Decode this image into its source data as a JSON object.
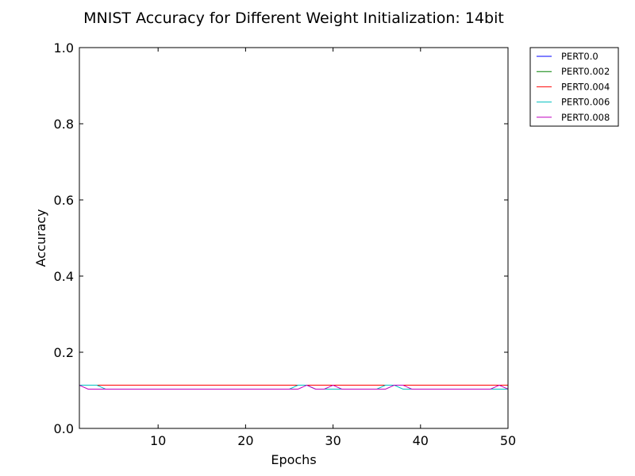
{
  "chart_data": {
    "type": "line",
    "title": "MNIST Accuracy for Different Weight Initialization: 14bit",
    "xlabel": "Epochs",
    "ylabel": "Accuracy",
    "xlim": [
      1,
      50
    ],
    "ylim": [
      0.0,
      1.0
    ],
    "x_ticks": [
      10,
      20,
      30,
      40,
      50
    ],
    "x_tick_labels": [
      "10",
      "20",
      "30",
      "40",
      "50"
    ],
    "y_ticks": [
      0.0,
      0.2,
      0.4,
      0.6,
      0.8,
      1.0
    ],
    "y_tick_labels": [
      "0.0",
      "0.2",
      "0.4",
      "0.6",
      "0.8",
      "1.0"
    ],
    "grid": false,
    "legend_position": "outside-top-right",
    "x": [
      1,
      2,
      3,
      4,
      5,
      6,
      7,
      8,
      9,
      10,
      11,
      12,
      13,
      14,
      15,
      16,
      17,
      18,
      19,
      20,
      21,
      22,
      23,
      24,
      25,
      26,
      27,
      28,
      29,
      30,
      31,
      32,
      33,
      34,
      35,
      36,
      37,
      38,
      39,
      40,
      41,
      42,
      43,
      44,
      45,
      46,
      47,
      48,
      49,
      50
    ],
    "series": [
      {
        "name": "PERT0.0",
        "color": "#0000ff",
        "values": [
          0.1135,
          0.1135,
          0.1135,
          0.1135,
          0.1135,
          0.1135,
          0.1135,
          0.1135,
          0.1135,
          0.1135,
          0.1135,
          0.1135,
          0.1135,
          0.1135,
          0.1135,
          0.1135,
          0.1135,
          0.1135,
          0.1135,
          0.1135,
          0.1135,
          0.1135,
          0.1135,
          0.1135,
          0.1135,
          0.1135,
          0.1135,
          0.1135,
          0.1135,
          0.1135,
          0.1135,
          0.1135,
          0.1135,
          0.1135,
          0.1135,
          0.1135,
          0.1135,
          0.1135,
          0.1135,
          0.1135,
          0.1135,
          0.1135,
          0.1135,
          0.1135,
          0.1135,
          0.1135,
          0.1135,
          0.1135,
          0.1135,
          0.1135
        ]
      },
      {
        "name": "PERT0.002",
        "color": "#008000",
        "values": [
          0.1135,
          0.1135,
          0.1135,
          0.1135,
          0.1135,
          0.1135,
          0.1135,
          0.1135,
          0.1135,
          0.1135,
          0.1135,
          0.1135,
          0.1135,
          0.1135,
          0.1135,
          0.1135,
          0.1135,
          0.1135,
          0.1135,
          0.1135,
          0.1135,
          0.1135,
          0.1135,
          0.1135,
          0.1135,
          0.1135,
          0.1135,
          0.1135,
          0.1135,
          0.1135,
          0.1135,
          0.1135,
          0.1135,
          0.1135,
          0.1135,
          0.1135,
          0.1135,
          0.1135,
          0.1135,
          0.1135,
          0.1135,
          0.1135,
          0.1135,
          0.1135,
          0.1135,
          0.1135,
          0.1135,
          0.1135,
          0.1135,
          0.1135
        ]
      },
      {
        "name": "PERT0.004",
        "color": "#ff0000",
        "values": [
          0.1135,
          0.1135,
          0.1135,
          0.1135,
          0.1135,
          0.1135,
          0.1135,
          0.1135,
          0.1135,
          0.1135,
          0.1135,
          0.1135,
          0.1135,
          0.1135,
          0.1135,
          0.1135,
          0.1135,
          0.1135,
          0.1135,
          0.1135,
          0.1135,
          0.1135,
          0.1135,
          0.1135,
          0.1135,
          0.1135,
          0.1135,
          0.1135,
          0.1135,
          0.1135,
          0.1135,
          0.1135,
          0.1135,
          0.1135,
          0.1135,
          0.1135,
          0.1135,
          0.1135,
          0.1135,
          0.1135,
          0.1135,
          0.1135,
          0.1135,
          0.1135,
          0.1135,
          0.1135,
          0.1135,
          0.1135,
          0.1135,
          0.1135
        ]
      },
      {
        "name": "PERT0.006",
        "color": "#00bfbf",
        "values": [
          0.1135,
          0.1135,
          0.1135,
          0.1032,
          0.1032,
          0.1032,
          0.1032,
          0.1032,
          0.1032,
          0.1032,
          0.1032,
          0.1032,
          0.1032,
          0.1032,
          0.1032,
          0.1032,
          0.1032,
          0.1032,
          0.1032,
          0.1032,
          0.1032,
          0.1032,
          0.1032,
          0.1032,
          0.1032,
          0.1135,
          0.1135,
          0.1032,
          0.1032,
          0.1032,
          0.1032,
          0.1032,
          0.1032,
          0.1032,
          0.1032,
          0.1135,
          0.1135,
          0.1032,
          0.1032,
          0.1032,
          0.1032,
          0.1032,
          0.1032,
          0.1032,
          0.1032,
          0.1032,
          0.1032,
          0.1032,
          0.1032,
          0.1032
        ]
      },
      {
        "name": "PERT0.008",
        "color": "#bf00bf",
        "values": [
          0.1135,
          0.1032,
          0.1032,
          0.1032,
          0.1032,
          0.1032,
          0.1032,
          0.1032,
          0.1032,
          0.1032,
          0.1032,
          0.1032,
          0.1032,
          0.1032,
          0.1032,
          0.1032,
          0.1032,
          0.1032,
          0.1032,
          0.1032,
          0.1032,
          0.1032,
          0.1032,
          0.1032,
          0.1032,
          0.1032,
          0.1135,
          0.1032,
          0.1032,
          0.1135,
          0.1032,
          0.1032,
          0.1032,
          0.1032,
          0.1032,
          0.1032,
          0.1135,
          0.1135,
          0.1032,
          0.1032,
          0.1032,
          0.1032,
          0.1032,
          0.1032,
          0.1032,
          0.1032,
          0.1032,
          0.1032,
          0.1135,
          0.1032
        ]
      }
    ]
  }
}
